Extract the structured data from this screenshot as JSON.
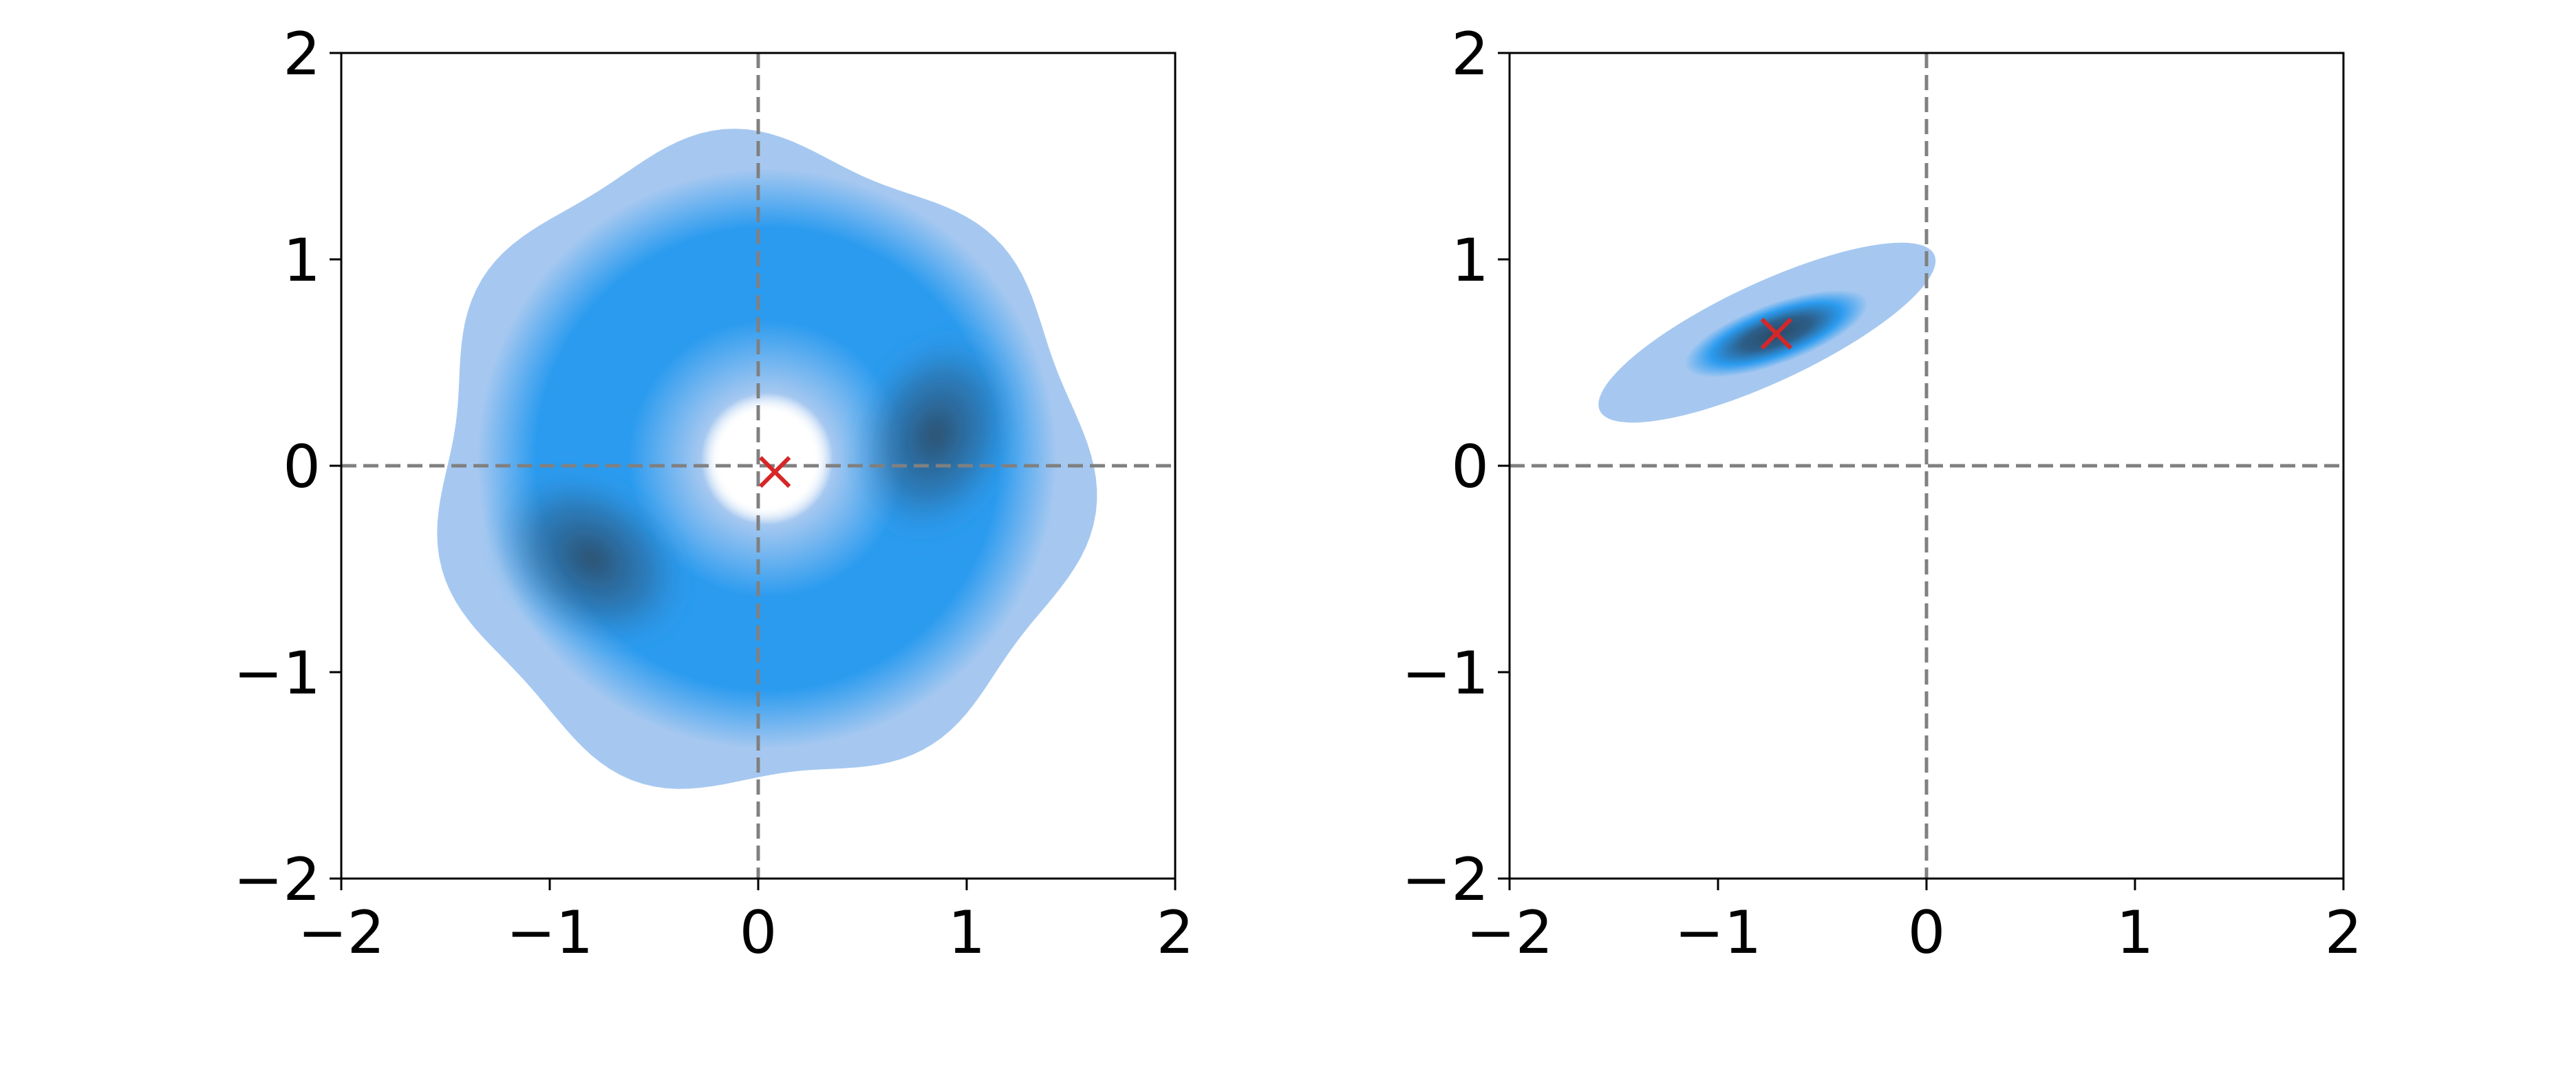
{
  "chart_data": [
    {
      "type": "heatmap",
      "subtype": "kde-density",
      "title": "",
      "xlabel": "",
      "ylabel": "",
      "xlim": [
        -2,
        2
      ],
      "ylim": [
        -2,
        2
      ],
      "xticks": [
        "−2",
        "−1",
        "0",
        "1",
        "2"
      ],
      "yticks": [
        "−2",
        "−1",
        "0",
        "1",
        "2"
      ],
      "grid": false,
      "reference_lines": {
        "x": 0,
        "y": 0,
        "style": "dashed",
        "color": "#808080"
      },
      "density": {
        "shape": "ring",
        "center": [
          0.0,
          0.0
        ],
        "inner_hole_radius": 0.2,
        "outer_radius": 1.55,
        "high_density_lobes": [
          [
            0.85,
            0.15
          ],
          [
            -0.8,
            -0.45
          ]
        ],
        "colormap": [
          "#ffffff",
          "#a6c8f0",
          "#2b9bef",
          "#2c4a66"
        ]
      },
      "marker": {
        "symbol": "x",
        "x": 0.08,
        "y": -0.03,
        "color": "#d62728"
      }
    },
    {
      "type": "heatmap",
      "subtype": "kde-density",
      "title": "",
      "xlabel": "",
      "ylabel": "",
      "xlim": [
        -2,
        2
      ],
      "ylim": [
        -2,
        2
      ],
      "xticks": [
        "−2",
        "−1",
        "0",
        "1",
        "2"
      ],
      "yticks": [
        "−2",
        "−1",
        "0",
        "1",
        "2"
      ],
      "grid": false,
      "reference_lines": {
        "x": 0,
        "y": 0,
        "style": "dashed",
        "color": "#808080"
      },
      "density": {
        "shape": "elongated-blob",
        "center": [
          -0.72,
          0.64
        ],
        "extent_x": [
          -1.65,
          0.12
        ],
        "extent_y": [
          0.23,
          1.06
        ],
        "orientation_deg": 25,
        "colormap": [
          "#ffffff",
          "#a6c8f0",
          "#2b9bef",
          "#2c4a66"
        ]
      },
      "marker": {
        "symbol": "x",
        "x": -0.72,
        "y": 0.64,
        "color": "#d62728"
      }
    }
  ]
}
